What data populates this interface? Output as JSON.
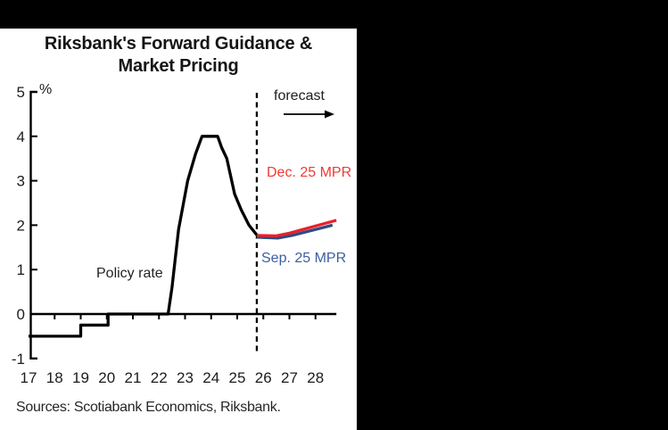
{
  "window": {
    "bg_color": "#000000",
    "panel_color": "#ffffff"
  },
  "title": {
    "line1": "Riksbank's Forward Guidance &",
    "line2": "Market Pricing"
  },
  "annotations": {
    "y_axis_unit": "%",
    "forecast_label": "forecast",
    "policy_rate_label": "Policy rate",
    "dec_mpr": {
      "text": "Dec. 25 MPR",
      "color": "#EF3B33"
    },
    "sep_mpr": {
      "text": "Sep. 25 MPR",
      "color": "#3D5FA1"
    }
  },
  "sources": "Sources: Scotiabank Economics, Riksbank.",
  "chart_data": {
    "type": "line",
    "title": "Riksbank's Forward Guidance & Market Pricing",
    "xlabel": "",
    "ylabel": "%",
    "ylim": [
      -1,
      5
    ],
    "xlim": [
      17,
      28.9
    ],
    "yticks": [
      5,
      4,
      3,
      2,
      1,
      0,
      -1
    ],
    "xticks": [
      17,
      18,
      19,
      20,
      21,
      22,
      23,
      24,
      25,
      26,
      27,
      28
    ],
    "grid": false,
    "legend_position": "inline-annotations",
    "forecast_divider_x": 25.75,
    "axis_color": "#000000",
    "series": [
      {
        "name": "Policy rate",
        "color": "#000000",
        "points": [
          [
            17.0,
            -0.5
          ],
          [
            19.0,
            -0.5
          ],
          [
            19.0,
            -0.25
          ],
          [
            20.05,
            -0.25
          ],
          [
            20.05,
            0.0
          ],
          [
            22.35,
            0.0
          ],
          [
            22.5,
            0.6
          ],
          [
            22.75,
            1.9
          ],
          [
            23.1,
            3.0
          ],
          [
            23.4,
            3.6
          ],
          [
            23.65,
            4.0
          ],
          [
            24.25,
            4.0
          ],
          [
            24.4,
            3.75
          ],
          [
            24.6,
            3.5
          ],
          [
            24.9,
            2.7
          ],
          [
            25.15,
            2.35
          ],
          [
            25.45,
            2.0
          ],
          [
            25.75,
            1.78
          ]
        ]
      },
      {
        "name": "Sep. 25 MPR",
        "color": "#2E4B83",
        "points": [
          [
            25.75,
            1.73
          ],
          [
            26.55,
            1.71
          ],
          [
            27.1,
            1.77
          ],
          [
            28.65,
            2.0
          ]
        ]
      },
      {
        "name": "Dec. 25 MPR",
        "color": "#E8212B",
        "points": [
          [
            25.75,
            1.77
          ],
          [
            26.5,
            1.76
          ],
          [
            27.0,
            1.82
          ],
          [
            28.8,
            2.11
          ]
        ]
      }
    ]
  }
}
